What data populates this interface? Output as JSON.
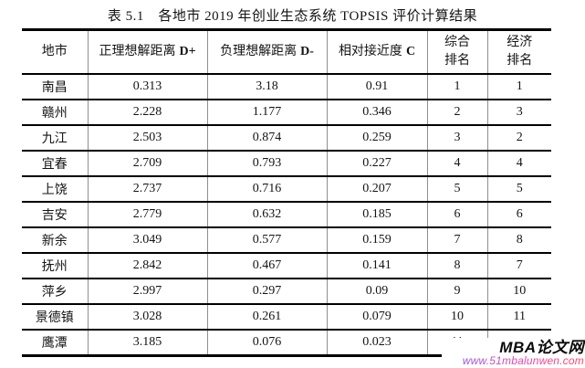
{
  "caption": "表 5.1　各地市 2019 年创业生态系统 TOPSIS 评价计算结果",
  "table": {
    "headers": [
      {
        "text": "地市",
        "symbol": ""
      },
      {
        "text": "正理想解距离",
        "symbol": "D+"
      },
      {
        "text": "负理想解距离",
        "symbol": "D-"
      },
      {
        "text": "相对接近度",
        "symbol": "C"
      },
      {
        "line1": "综合",
        "line2": "排名"
      },
      {
        "line1": "经济",
        "line2": "排名"
      }
    ],
    "rows": [
      {
        "city": "南昌",
        "d_plus": "0.313",
        "d_minus": "3.18",
        "closeness": "0.91",
        "overall_rank": "1",
        "economic_rank": "1"
      },
      {
        "city": "赣州",
        "d_plus": "2.228",
        "d_minus": "1.177",
        "closeness": "0.346",
        "overall_rank": "2",
        "economic_rank": "3"
      },
      {
        "city": "九江",
        "d_plus": "2.503",
        "d_minus": "0.874",
        "closeness": "0.259",
        "overall_rank": "3",
        "economic_rank": "2"
      },
      {
        "city": "宜春",
        "d_plus": "2.709",
        "d_minus": "0.793",
        "closeness": "0.227",
        "overall_rank": "4",
        "economic_rank": "4"
      },
      {
        "city": "上饶",
        "d_plus": "2.737",
        "d_minus": "0.716",
        "closeness": "0.207",
        "overall_rank": "5",
        "economic_rank": "5"
      },
      {
        "city": "吉安",
        "d_plus": "2.779",
        "d_minus": "0.632",
        "closeness": "0.185",
        "overall_rank": "6",
        "economic_rank": "6"
      },
      {
        "city": "新余",
        "d_plus": "3.049",
        "d_minus": "0.577",
        "closeness": "0.159",
        "overall_rank": "7",
        "economic_rank": "8"
      },
      {
        "city": "抚州",
        "d_plus": "2.842",
        "d_minus": "0.467",
        "closeness": "0.141",
        "overall_rank": "8",
        "economic_rank": "7"
      },
      {
        "city": "萍乡",
        "d_plus": "2.997",
        "d_minus": "0.297",
        "closeness": "0.09",
        "overall_rank": "9",
        "economic_rank": "10"
      },
      {
        "city": "景德镇",
        "d_plus": "3.028",
        "d_minus": "0.261",
        "closeness": "0.079",
        "overall_rank": "10",
        "economic_rank": "11"
      },
      {
        "city": "鹰潭",
        "d_plus": "3.185",
        "d_minus": "0.076",
        "closeness": "0.023",
        "overall_rank": "11",
        "economic_rank": ""
      }
    ]
  },
  "watermark": {
    "site_name": "MBA论文网",
    "site_url": "www.51mbalunwen.com"
  },
  "colors": {
    "rule_horizontal": "#000000",
    "rule_vertical": "#8f8f8f",
    "watermark_url_start": "#7d57e0",
    "watermark_url_end": "#ff4560",
    "text": "#141414",
    "background": "#ffffff"
  }
}
